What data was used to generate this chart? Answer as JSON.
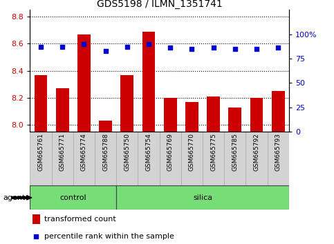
{
  "title": "GDS5198 / ILMN_1351741",
  "samples": [
    "GSM665761",
    "GSM665771",
    "GSM665774",
    "GSM665788",
    "GSM665750",
    "GSM665754",
    "GSM665769",
    "GSM665770",
    "GSM665775",
    "GSM665785",
    "GSM665792",
    "GSM665793"
  ],
  "bar_values": [
    8.37,
    8.27,
    8.67,
    8.03,
    8.37,
    8.69,
    8.2,
    8.17,
    8.21,
    8.13,
    8.2,
    8.25
  ],
  "percentile_values": [
    87,
    87,
    90,
    83,
    87,
    90,
    86,
    85,
    86,
    85,
    85,
    86
  ],
  "ylim_left": [
    7.95,
    8.85
  ],
  "ylim_right": [
    0,
    125
  ],
  "yticks_left": [
    8.0,
    8.2,
    8.4,
    8.6,
    8.8
  ],
  "yticks_right": [
    0,
    25,
    50,
    75,
    100
  ],
  "ytick_labels_right": [
    "0",
    "25",
    "50",
    "75",
    "100%"
  ],
  "bar_color": "#cc0000",
  "dot_color": "#0000cc",
  "control_label": "control",
  "silica_label": "silica",
  "control_count": 4,
  "silica_count": 8,
  "agent_label": "agent",
  "legend_bar": "transformed count",
  "legend_dot": "percentile rank within the sample",
  "group_bg_color": "#77dd77",
  "tick_bg_color": "#d3d3d3",
  "grid_color": "#000000",
  "figsize": [
    4.83,
    3.54
  ],
  "dpi": 100
}
